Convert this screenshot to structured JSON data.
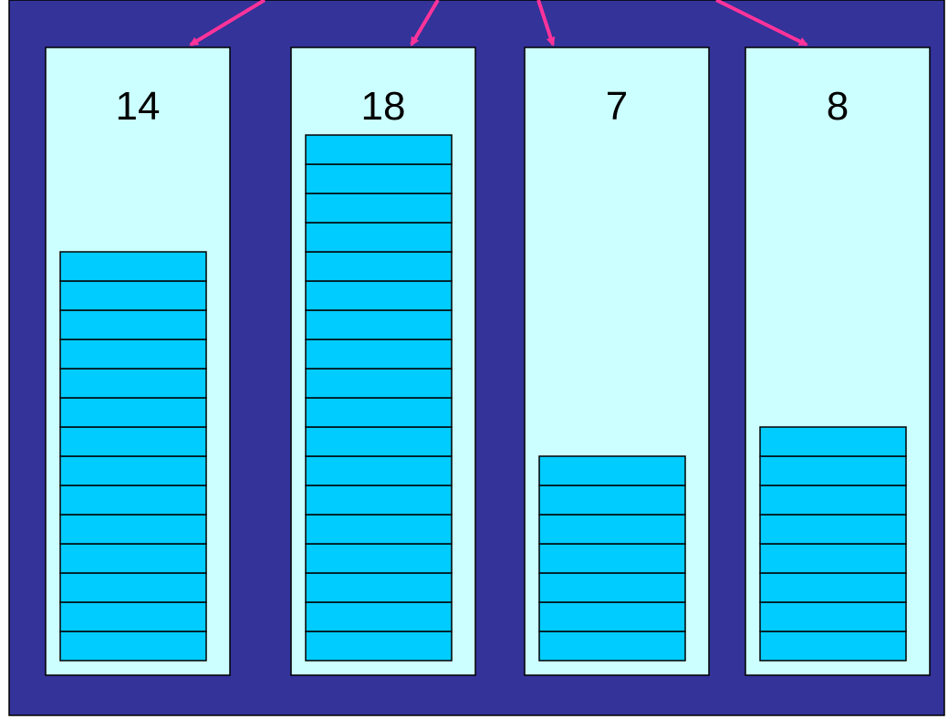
{
  "colors": {
    "page_background": "#ffffff",
    "panel_fill": "#333399",
    "column_fill": "#ccffff",
    "block_fill": "#00ccff",
    "outline": "#000000",
    "arrow": "#ff3399"
  },
  "stacks": [
    {
      "label": "14",
      "count": 14
    },
    {
      "label": "18",
      "count": 18
    },
    {
      "label": "7",
      "count": 7
    },
    {
      "label": "8",
      "count": 8
    }
  ]
}
